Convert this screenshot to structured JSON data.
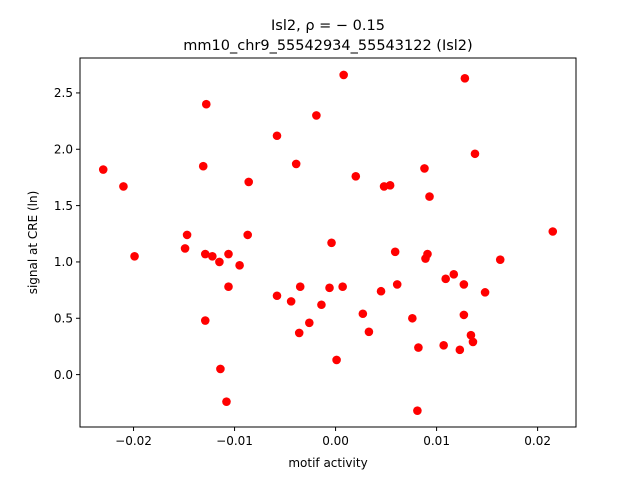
{
  "chart_data": {
    "type": "scatter",
    "title_line1": "Isl2, ρ = − 0.15",
    "title_line2": "mm10_chr9_55542934_55543122 (Isl2)",
    "xlabel": "motif activity",
    "ylabel": "signal at CRE (ln)",
    "xlim": [
      -0.0253,
      0.0238
    ],
    "ylim": [
      -0.465,
      2.81
    ],
    "xticks": [
      -0.02,
      -0.01,
      0.0,
      0.01,
      0.02
    ],
    "xtick_labels": [
      "−0.02",
      "−0.01",
      "0.00",
      "0.01",
      "0.02"
    ],
    "yticks": [
      0.0,
      0.5,
      1.0,
      1.5,
      2.0,
      2.5
    ],
    "ytick_labels": [
      "0.0",
      "0.5",
      "1.0",
      "1.5",
      "2.0",
      "2.5"
    ],
    "grid": false,
    "marker_color": "#ff0000",
    "points": [
      {
        "x": -0.023,
        "y": 1.82
      },
      {
        "x": -0.021,
        "y": 1.67
      },
      {
        "x": -0.0199,
        "y": 1.05
      },
      {
        "x": -0.0147,
        "y": 1.24
      },
      {
        "x": -0.0149,
        "y": 1.12
      },
      {
        "x": -0.0131,
        "y": 1.85
      },
      {
        "x": -0.0128,
        "y": 2.4
      },
      {
        "x": -0.0129,
        "y": 1.07
      },
      {
        "x": -0.0129,
        "y": 0.48
      },
      {
        "x": -0.0122,
        "y": 1.05
      },
      {
        "x": -0.0115,
        "y": 1.0
      },
      {
        "x": -0.0106,
        "y": 1.07
      },
      {
        "x": -0.0106,
        "y": 0.78
      },
      {
        "x": -0.0114,
        "y": 0.05
      },
      {
        "x": -0.0108,
        "y": -0.24
      },
      {
        "x": -0.0095,
        "y": 0.97
      },
      {
        "x": -0.0086,
        "y": 1.71
      },
      {
        "x": -0.0087,
        "y": 1.24
      },
      {
        "x": -0.0058,
        "y": 2.12
      },
      {
        "x": -0.0058,
        "y": 0.7
      },
      {
        "x": -0.0044,
        "y": 0.65
      },
      {
        "x": -0.0039,
        "y": 1.87
      },
      {
        "x": -0.0035,
        "y": 0.78
      },
      {
        "x": -0.0036,
        "y": 0.37
      },
      {
        "x": -0.0026,
        "y": 0.46
      },
      {
        "x": -0.0019,
        "y": 2.3
      },
      {
        "x": -0.0014,
        "y": 0.62
      },
      {
        "x": -0.0006,
        "y": 0.77
      },
      {
        "x": -0.0004,
        "y": 1.17
      },
      {
        "x": 0.0001,
        "y": 0.13
      },
      {
        "x": 0.0007,
        "y": 0.78
      },
      {
        "x": 0.0008,
        "y": 2.66
      },
      {
        "x": 0.002,
        "y": 1.76
      },
      {
        "x": 0.0027,
        "y": 0.54
      },
      {
        "x": 0.0033,
        "y": 0.38
      },
      {
        "x": 0.0045,
        "y": 0.74
      },
      {
        "x": 0.0048,
        "y": 1.67
      },
      {
        "x": 0.0054,
        "y": 1.68
      },
      {
        "x": 0.0059,
        "y": 1.09
      },
      {
        "x": 0.0061,
        "y": 0.8
      },
      {
        "x": 0.0076,
        "y": 0.5
      },
      {
        "x": 0.0082,
        "y": 0.24
      },
      {
        "x": 0.0081,
        "y": -0.32
      },
      {
        "x": 0.0088,
        "y": 1.83
      },
      {
        "x": 0.0089,
        "y": 1.03
      },
      {
        "x": 0.0091,
        "y": 1.07
      },
      {
        "x": 0.0093,
        "y": 1.58
      },
      {
        "x": 0.0107,
        "y": 0.26
      },
      {
        "x": 0.0109,
        "y": 0.85
      },
      {
        "x": 0.0117,
        "y": 0.89
      },
      {
        "x": 0.0123,
        "y": 0.22
      },
      {
        "x": 0.0128,
        "y": 2.63
      },
      {
        "x": 0.0127,
        "y": 0.8
      },
      {
        "x": 0.0127,
        "y": 0.53
      },
      {
        "x": 0.0134,
        "y": 0.35
      },
      {
        "x": 0.0138,
        "y": 1.96
      },
      {
        "x": 0.0136,
        "y": 0.29
      },
      {
        "x": 0.0148,
        "y": 0.73
      },
      {
        "x": 0.0163,
        "y": 1.02
      },
      {
        "x": 0.0215,
        "y": 1.27
      }
    ]
  }
}
